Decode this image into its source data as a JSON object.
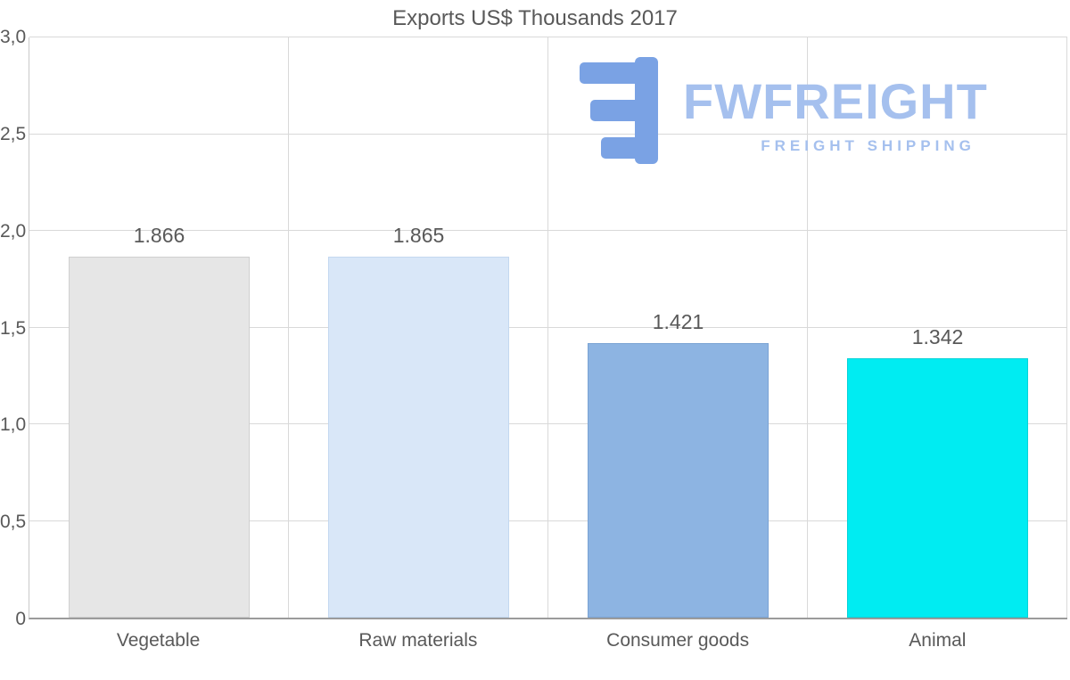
{
  "chart_data": {
    "type": "bar",
    "title": "Exports US$ Thousands 2017",
    "categories": [
      "Vegetable",
      "Raw materials",
      "Consumer goods",
      "Animal"
    ],
    "values": [
      1.866,
      1.865,
      1.421,
      1.342
    ],
    "value_labels": [
      "1.866",
      "1.865",
      "1.421",
      "1.342"
    ],
    "bar_colors": [
      "#e6e6e6",
      "#d9e7f8",
      "#8db4e2",
      "#00ecf2"
    ],
    "bar_border_colors": [
      "#cfcfcf",
      "#c3d8f0",
      "#7aa3d4",
      "#00d2d8"
    ],
    "ylim": [
      0,
      3
    ],
    "yticks": [
      3,
      2.5,
      2,
      1.5,
      1,
      0.5,
      0
    ],
    "ytick_labels": [
      "3,0",
      "2,5",
      "2,0",
      "1,5",
      "1,0",
      "0,5",
      "0"
    ],
    "grid": true,
    "gridline_color": "#d9d9d9",
    "axis_color": "#9b9b9b",
    "text_color": "#595959",
    "xlabel": "",
    "ylabel": ""
  },
  "logo": {
    "brand": "FWFREIGHT",
    "tagline": "FREIGHT SHIPPING",
    "mark_color": "#7aa2e4",
    "text_color": "#a5c0ee"
  }
}
